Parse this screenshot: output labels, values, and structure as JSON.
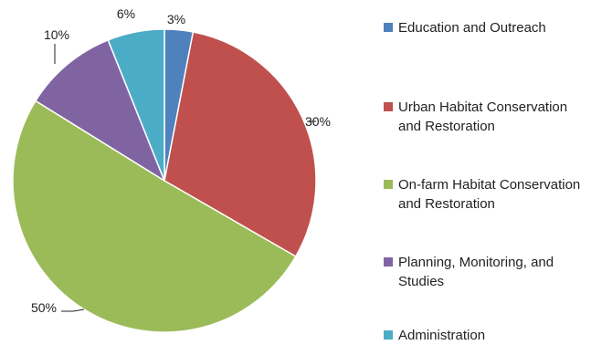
{
  "chart_data": {
    "type": "pie",
    "categories": [
      "Education and Outreach",
      "Urban Habitat Conservation and Restoration",
      "On-farm Habitat Conservation and Restoration",
      "Planning, Monitoring, and Studies",
      "Administration"
    ],
    "values": [
      3,
      30,
      50,
      10,
      6
    ],
    "data_labels": [
      "3%",
      "30%",
      "50%",
      "10%",
      "6%"
    ],
    "colors": [
      "#4F81BD",
      "#C0504D",
      "#9BBB59",
      "#8064A2",
      "#4BACC6"
    ],
    "title": "",
    "legend_position": "right",
    "start_angle": "12 o'clock",
    "direction": "clockwise"
  }
}
